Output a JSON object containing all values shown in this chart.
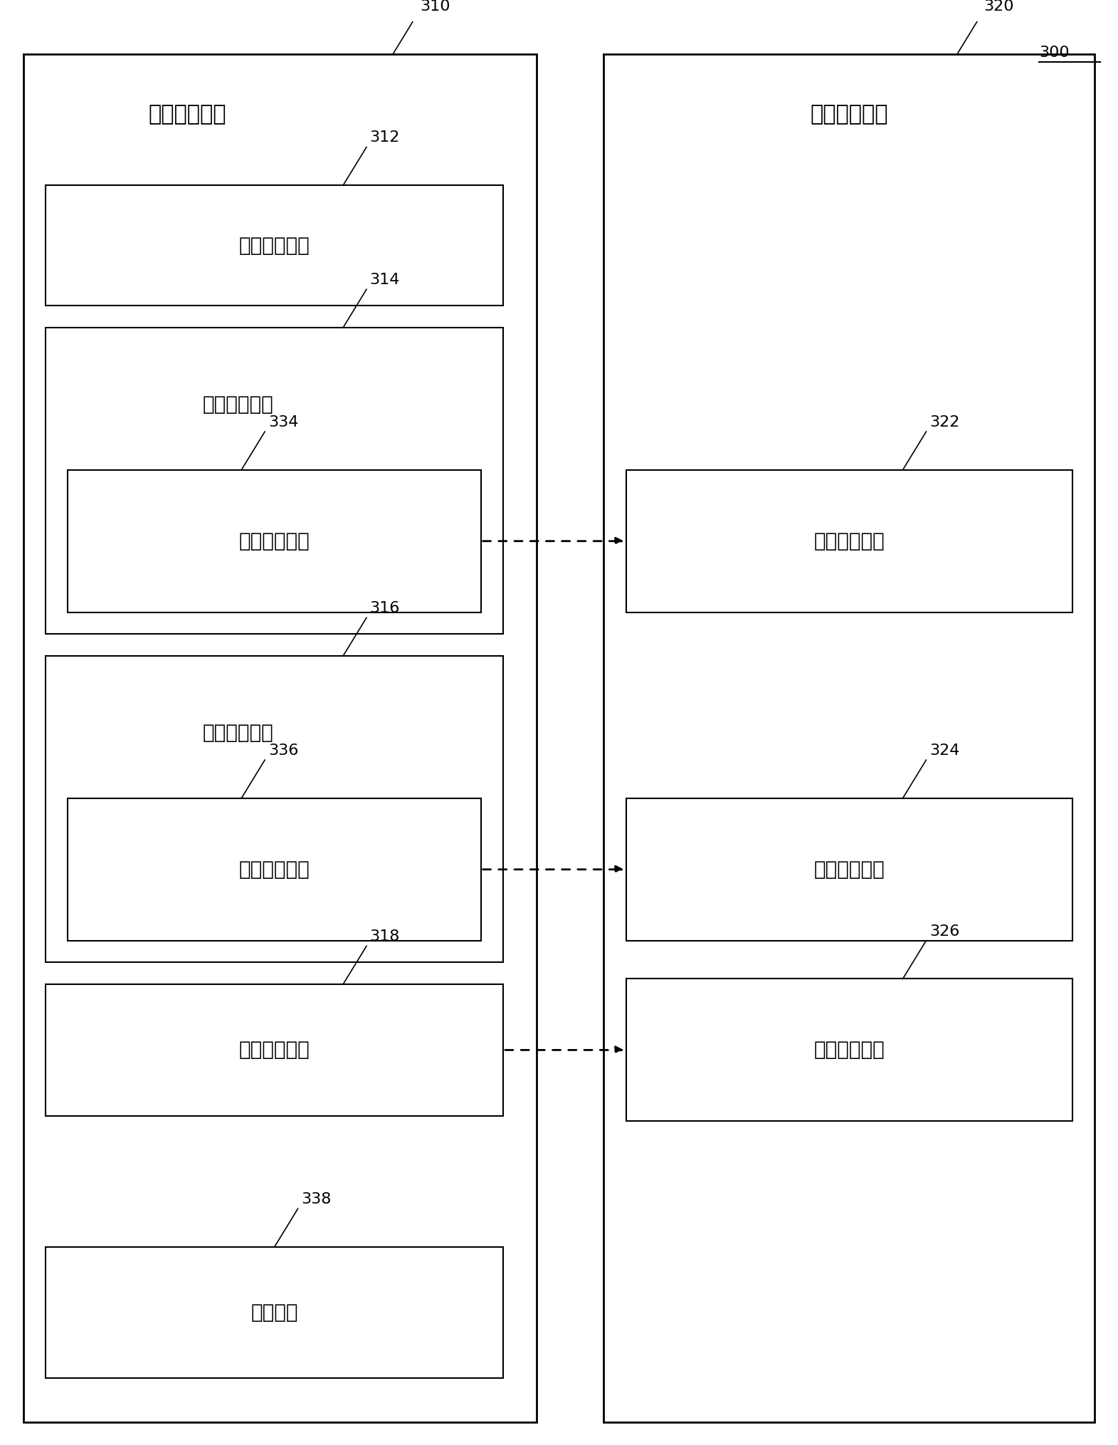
{
  "fig_width": 15.71,
  "fig_height": 20.29,
  "bg_color": "#ffffff",
  "outer_fc": "#ffffff",
  "box_fc": "#ffffff",
  "box_ec": "#000000",
  "text_color": "#000000",
  "label_300": "300",
  "label_310": "310",
  "label_320": "320",
  "label_312": "312",
  "label_314": "314",
  "label_316": "316",
  "label_318": "318",
  "label_322": "322",
  "label_324": "324",
  "label_326": "326",
  "label_334": "334",
  "label_336": "336",
  "label_338": "338",
  "title_left": "报头信息单元",
  "title_right": "媒体信息单元",
  "box_312_text": "图像合成信息",
  "box_314_text": "第一控制信息",
  "box_316_text": "第二控制信息",
  "box_318_text": "第三控制信息",
  "box_334_text": "第一参考信息",
  "box_336_text": "第二参考信息",
  "box_338_text": "时间信息",
  "box_322_text": "第一立体图像",
  "box_324_text": "第二立体图像",
  "box_326_text": "第三立体图像",
  "outer_lw": 2.0,
  "inner_lw": 1.5,
  "font_size_title": 22,
  "font_size_box": 20,
  "font_size_label": 16
}
